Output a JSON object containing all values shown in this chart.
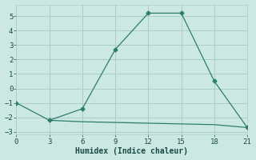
{
  "line1_x": [
    0,
    3,
    6,
    9,
    12,
    15,
    18,
    21
  ],
  "line1_y": [
    -1,
    -2.2,
    -1.4,
    2.7,
    5.2,
    5.2,
    0.5,
    -2.7
  ],
  "line2_x": [
    3,
    6,
    9,
    12,
    15,
    18,
    21
  ],
  "line2_y": [
    -2.2,
    -2.3,
    -2.35,
    -2.4,
    -2.45,
    -2.5,
    -2.7
  ],
  "color": "#2d7d6e",
  "bg_color": "#cce8e2",
  "grid_color": "#aecdc7",
  "xlabel": "Humidex (Indice chaleur)",
  "xlim": [
    0,
    21
  ],
  "ylim": [
    -3.2,
    5.8
  ],
  "xticks": [
    0,
    3,
    6,
    9,
    12,
    15,
    18,
    21
  ],
  "yticks": [
    -3,
    -2,
    -1,
    0,
    1,
    2,
    3,
    4,
    5
  ],
  "font_color": "#1a4a44",
  "tick_fontsize": 6.5,
  "xlabel_fontsize": 7.0
}
